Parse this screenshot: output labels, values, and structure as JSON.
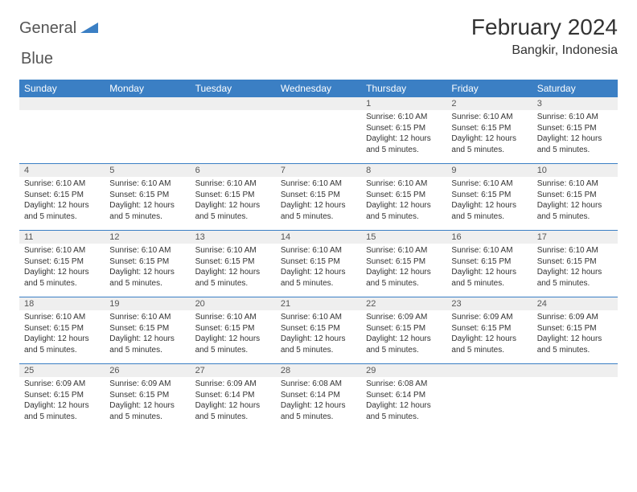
{
  "colors": {
    "brand_blue": "#3b7fc4",
    "header_bg": "#3b7fc4",
    "header_text": "#ffffff",
    "daynum_bg": "#efefef",
    "body_text": "#333333",
    "logo_gray": "#555555"
  },
  "logo": {
    "word1": "General",
    "word2": "Blue"
  },
  "title": "February 2024",
  "location": "Bangkir, Indonesia",
  "dow": [
    "Sunday",
    "Monday",
    "Tuesday",
    "Wednesday",
    "Thursday",
    "Friday",
    "Saturday"
  ],
  "weeks": [
    {
      "nums": [
        "",
        "",
        "",
        "",
        "1",
        "2",
        "3"
      ],
      "cells": [
        null,
        null,
        null,
        null,
        {
          "sunrise": "6:10 AM",
          "sunset": "6:15 PM",
          "daylight": "12 hours and 5 minutes."
        },
        {
          "sunrise": "6:10 AM",
          "sunset": "6:15 PM",
          "daylight": "12 hours and 5 minutes."
        },
        {
          "sunrise": "6:10 AM",
          "sunset": "6:15 PM",
          "daylight": "12 hours and 5 minutes."
        }
      ]
    },
    {
      "nums": [
        "4",
        "5",
        "6",
        "7",
        "8",
        "9",
        "10"
      ],
      "cells": [
        {
          "sunrise": "6:10 AM",
          "sunset": "6:15 PM",
          "daylight": "12 hours and 5 minutes."
        },
        {
          "sunrise": "6:10 AM",
          "sunset": "6:15 PM",
          "daylight": "12 hours and 5 minutes."
        },
        {
          "sunrise": "6:10 AM",
          "sunset": "6:15 PM",
          "daylight": "12 hours and 5 minutes."
        },
        {
          "sunrise": "6:10 AM",
          "sunset": "6:15 PM",
          "daylight": "12 hours and 5 minutes."
        },
        {
          "sunrise": "6:10 AM",
          "sunset": "6:15 PM",
          "daylight": "12 hours and 5 minutes."
        },
        {
          "sunrise": "6:10 AM",
          "sunset": "6:15 PM",
          "daylight": "12 hours and 5 minutes."
        },
        {
          "sunrise": "6:10 AM",
          "sunset": "6:15 PM",
          "daylight": "12 hours and 5 minutes."
        }
      ]
    },
    {
      "nums": [
        "11",
        "12",
        "13",
        "14",
        "15",
        "16",
        "17"
      ],
      "cells": [
        {
          "sunrise": "6:10 AM",
          "sunset": "6:15 PM",
          "daylight": "12 hours and 5 minutes."
        },
        {
          "sunrise": "6:10 AM",
          "sunset": "6:15 PM",
          "daylight": "12 hours and 5 minutes."
        },
        {
          "sunrise": "6:10 AM",
          "sunset": "6:15 PM",
          "daylight": "12 hours and 5 minutes."
        },
        {
          "sunrise": "6:10 AM",
          "sunset": "6:15 PM",
          "daylight": "12 hours and 5 minutes."
        },
        {
          "sunrise": "6:10 AM",
          "sunset": "6:15 PM",
          "daylight": "12 hours and 5 minutes."
        },
        {
          "sunrise": "6:10 AM",
          "sunset": "6:15 PM",
          "daylight": "12 hours and 5 minutes."
        },
        {
          "sunrise": "6:10 AM",
          "sunset": "6:15 PM",
          "daylight": "12 hours and 5 minutes."
        }
      ]
    },
    {
      "nums": [
        "18",
        "19",
        "20",
        "21",
        "22",
        "23",
        "24"
      ],
      "cells": [
        {
          "sunrise": "6:10 AM",
          "sunset": "6:15 PM",
          "daylight": "12 hours and 5 minutes."
        },
        {
          "sunrise": "6:10 AM",
          "sunset": "6:15 PM",
          "daylight": "12 hours and 5 minutes."
        },
        {
          "sunrise": "6:10 AM",
          "sunset": "6:15 PM",
          "daylight": "12 hours and 5 minutes."
        },
        {
          "sunrise": "6:10 AM",
          "sunset": "6:15 PM",
          "daylight": "12 hours and 5 minutes."
        },
        {
          "sunrise": "6:09 AM",
          "sunset": "6:15 PM",
          "daylight": "12 hours and 5 minutes."
        },
        {
          "sunrise": "6:09 AM",
          "sunset": "6:15 PM",
          "daylight": "12 hours and 5 minutes."
        },
        {
          "sunrise": "6:09 AM",
          "sunset": "6:15 PM",
          "daylight": "12 hours and 5 minutes."
        }
      ]
    },
    {
      "nums": [
        "25",
        "26",
        "27",
        "28",
        "29",
        "",
        ""
      ],
      "cells": [
        {
          "sunrise": "6:09 AM",
          "sunset": "6:15 PM",
          "daylight": "12 hours and 5 minutes."
        },
        {
          "sunrise": "6:09 AM",
          "sunset": "6:15 PM",
          "daylight": "12 hours and 5 minutes."
        },
        {
          "sunrise": "6:09 AM",
          "sunset": "6:14 PM",
          "daylight": "12 hours and 5 minutes."
        },
        {
          "sunrise": "6:08 AM",
          "sunset": "6:14 PM",
          "daylight": "12 hours and 5 minutes."
        },
        {
          "sunrise": "6:08 AM",
          "sunset": "6:14 PM",
          "daylight": "12 hours and 5 minutes."
        },
        null,
        null
      ]
    }
  ],
  "labels": {
    "sunrise": "Sunrise:",
    "sunset": "Sunset:",
    "daylight": "Daylight:"
  }
}
